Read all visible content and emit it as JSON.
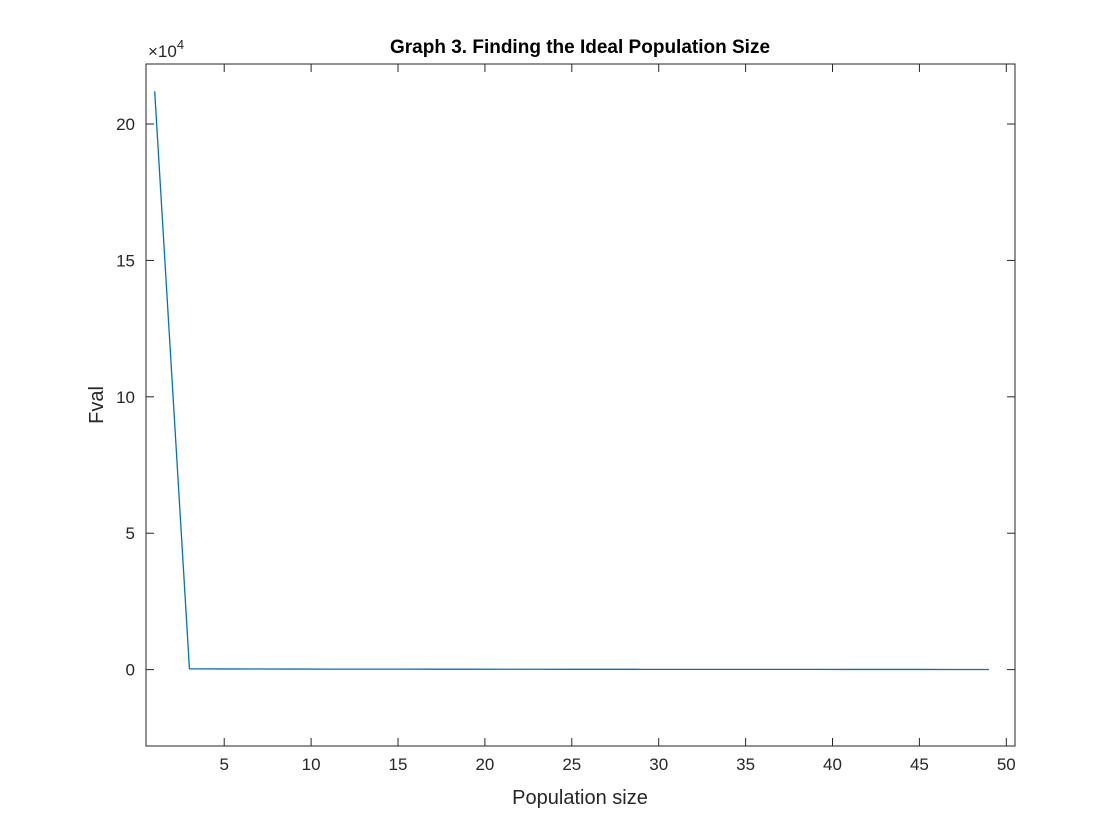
{
  "chart_data": {
    "type": "line",
    "title": "Graph 3. Finding the Ideal Population Size",
    "xlabel": "Population size",
    "ylabel": "Fval",
    "y_exponent_label": "×10",
    "y_exponent_power": "4",
    "xlim": [
      0.5,
      50.5
    ],
    "ylim": [
      -28000,
      222000
    ],
    "x_ticks": [
      5,
      10,
      15,
      20,
      25,
      30,
      35,
      40,
      45,
      50
    ],
    "x_tick_labels": [
      "5",
      "10",
      "15",
      "20",
      "25",
      "30",
      "35",
      "40",
      "45",
      "50"
    ],
    "y_ticks": [
      0,
      50000,
      100000,
      150000,
      200000
    ],
    "y_tick_labels": [
      "0",
      "5",
      "10",
      "15",
      "20"
    ],
    "grid": false,
    "box": true,
    "series": [
      {
        "color": "#0072BD",
        "x": [
          1,
          3,
          5,
          7,
          9,
          11,
          13,
          15,
          17,
          19,
          21,
          23,
          25,
          27,
          29,
          31,
          33,
          35,
          37,
          39,
          41,
          43,
          45,
          47,
          49
        ],
        "y": [
          212000,
          300,
          250,
          220,
          200,
          190,
          180,
          170,
          160,
          150,
          140,
          130,
          120,
          110,
          100,
          95,
          90,
          85,
          80,
          75,
          70,
          65,
          60,
          55,
          50
        ]
      }
    ]
  }
}
